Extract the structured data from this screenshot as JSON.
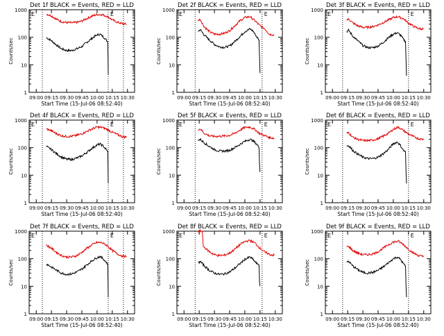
{
  "figure": {
    "xlabel": "Start Time (15-Jul-06 08:52:40)",
    "ylabel": "Counts/sec",
    "y_ticks": [
      1,
      10,
      100,
      1000
    ],
    "y_tick_labels": [
      "1",
      "10",
      "100",
      "1000"
    ],
    "marker": "E",
    "colors": {
      "events": "#000000",
      "lld": "#e00000",
      "axes": "#000000"
    }
  },
  "chart_data": [
    {
      "type": "line",
      "title": "Det 1f BLACK = Events, RED = LLD",
      "xlabel": "Start Time (15-Jul-06 08:52:40)",
      "ylabel": "Counts/sec",
      "x_tick_labels": [
        "09:00",
        "09:15",
        "09:30",
        "09:45",
        "10:00",
        "10:15",
        "10:30"
      ],
      "x_ticks_min": [
        0,
        15,
        30,
        45,
        60,
        75,
        90
      ],
      "xlim_min": [
        -7,
        97
      ],
      "y_scale": "log",
      "ylim": [
        1,
        1000
      ],
      "vlines_min": [
        6,
        71,
        86
      ],
      "marker_x_min": 73,
      "series": [
        {
          "name": "Events",
          "color": "#000000",
          "x": [
            10,
            15,
            20,
            25,
            30,
            35,
            40,
            45,
            50,
            55,
            60,
            63,
            66,
            69,
            70.5,
            70.8,
            71
          ],
          "y": [
            98,
            75,
            52,
            38,
            33,
            33,
            38,
            46,
            66,
            92,
            122,
            128,
            106,
            80,
            68,
            20,
            4.5
          ]
        },
        {
          "name": "LLD",
          "color": "#e00000",
          "x": [
            10,
            15,
            20,
            25,
            30,
            35,
            40,
            45,
            50,
            55,
            60,
            65,
            70,
            75,
            80,
            85,
            89
          ],
          "y": [
            700,
            600,
            450,
            370,
            340,
            335,
            345,
            390,
            480,
            590,
            670,
            660,
            570,
            430,
            350,
            310,
            300
          ]
        }
      ]
    },
    {
      "type": "line",
      "title": "Det 2f BLACK = Events, RED = LLD",
      "xlabel": "Start Time (15-Jul-06 08:52:40)",
      "ylabel": "Counts/sec",
      "x_tick_labels": [
        "09:00",
        "09:15",
        "09:30",
        "09:45",
        "10:00",
        "10:15",
        "10:30"
      ],
      "x_ticks_min": [
        0,
        15,
        30,
        45,
        60,
        75,
        90
      ],
      "xlim_min": [
        -7,
        97
      ],
      "y_scale": "log",
      "ylim": [
        1,
        1000
      ],
      "vlines_min": [
        11,
        77
      ],
      "marker_x_min": 79,
      "series": [
        {
          "name": "Events",
          "color": "#000000",
          "x": [
            14,
            16,
            20,
            25,
            30,
            35,
            40,
            45,
            50,
            55,
            60,
            65,
            68,
            72,
            74,
            74.5,
            75
          ],
          "y": [
            165,
            190,
            120,
            80,
            55,
            45,
            43,
            48,
            70,
            105,
            160,
            200,
            170,
            100,
            80,
            20,
            5
          ]
        },
        {
          "name": "LLD",
          "color": "#e00000",
          "x": [
            14,
            16,
            20,
            25,
            30,
            35,
            40,
            45,
            50,
            55,
            60,
            65,
            70,
            75,
            80,
            84,
            89
          ],
          "y": [
            420,
            440,
            240,
            160,
            130,
            130,
            140,
            175,
            260,
            390,
            520,
            560,
            400,
            260,
            200,
            130,
            120
          ]
        }
      ]
    },
    {
      "type": "line",
      "title": "Det 3f BLACK = Events, RED = LLD",
      "xlabel": "Start Time (15-Jul-06 08:52:40)",
      "ylabel": "Counts/sec",
      "x_tick_labels": [
        "09:00",
        "09:15",
        "09:30",
        "09:45",
        "10:00",
        "10:15",
        "10:30"
      ],
      "x_ticks_min": [
        0,
        15,
        30,
        45,
        60,
        75,
        90
      ],
      "xlim_min": [
        -7,
        97
      ],
      "y_scale": "log",
      "ylim": [
        1,
        1000
      ],
      "vlines_min": [
        10,
        75
      ],
      "marker_x_min": 77,
      "series": [
        {
          "name": "Events",
          "color": "#000000",
          "x": [
            14,
            16,
            20,
            25,
            30,
            35,
            40,
            45,
            50,
            55,
            60,
            64,
            67,
            70,
            72,
            72.5,
            73
          ],
          "y": [
            160,
            180,
            110,
            75,
            50,
            42,
            42,
            48,
            65,
            95,
            130,
            145,
            120,
            85,
            70,
            18,
            4
          ]
        },
        {
          "name": "LLD",
          "color": "#e00000",
          "x": [
            14,
            16,
            20,
            25,
            30,
            35,
            40,
            45,
            50,
            55,
            60,
            65,
            70,
            75,
            80,
            85,
            90
          ],
          "y": [
            420,
            460,
            330,
            260,
            230,
            230,
            245,
            280,
            340,
            420,
            520,
            560,
            470,
            330,
            250,
            205,
            200
          ]
        }
      ]
    },
    {
      "type": "line",
      "title": "Det 4f BLACK = Events, RED = LLD",
      "xlabel": "Start Time (15-Jul-06 08:52:40)",
      "ylabel": "Counts/sec",
      "x_tick_labels": [
        "09:00",
        "09:15",
        "09:30",
        "09:45",
        "10:00",
        "10:15",
        "10:30"
      ],
      "x_ticks_min": [
        0,
        15,
        30,
        45,
        60,
        75,
        90
      ],
      "xlim_min": [
        -7,
        97
      ],
      "y_scale": "log",
      "ylim": [
        1,
        1000
      ],
      "vlines_min": [
        6,
        71,
        86
      ],
      "marker_x_min": 73,
      "series": [
        {
          "name": "Events",
          "color": "#000000",
          "x": [
            10,
            15,
            20,
            25,
            30,
            35,
            40,
            45,
            50,
            55,
            60,
            63,
            66,
            69,
            70.5,
            70.8,
            71
          ],
          "y": [
            110,
            85,
            60,
            45,
            38,
            37,
            42,
            50,
            68,
            95,
            125,
            135,
            115,
            85,
            75,
            20,
            5
          ]
        },
        {
          "name": "LLD",
          "color": "#e00000",
          "x": [
            10,
            15,
            20,
            25,
            30,
            35,
            40,
            45,
            50,
            55,
            60,
            65,
            70,
            75,
            80,
            85,
            89
          ],
          "y": [
            480,
            410,
            320,
            270,
            255,
            260,
            280,
            320,
            390,
            480,
            560,
            540,
            460,
            360,
            300,
            250,
            240
          ]
        }
      ]
    },
    {
      "type": "line",
      "title": "Det 5f BLACK = Events, RED = LLD",
      "xlabel": "Start Time (15-Jul-06 08:52:40)",
      "ylabel": "Counts/sec",
      "x_tick_labels": [
        "09:00",
        "09:15",
        "09:30",
        "09:45",
        "10:00",
        "10:15",
        "10:30"
      ],
      "x_ticks_min": [
        0,
        15,
        30,
        45,
        60,
        75,
        90
      ],
      "xlim_min": [
        -7,
        97
      ],
      "y_scale": "log",
      "ylim": [
        1,
        1000
      ],
      "vlines_min": [
        11,
        77
      ],
      "marker_x_min": 79,
      "series": [
        {
          "name": "Events",
          "color": "#000000",
          "x": [
            14,
            16,
            20,
            25,
            30,
            35,
            40,
            45,
            50,
            55,
            60,
            65,
            68,
            72,
            74,
            74.5,
            75
          ],
          "y": [
            190,
            200,
            150,
            110,
            85,
            75,
            75,
            80,
            100,
            130,
            170,
            200,
            180,
            130,
            100,
            25,
            13
          ]
        },
        {
          "name": "LLD",
          "color": "#e00000",
          "x": [
            14,
            16,
            20,
            25,
            30,
            35,
            40,
            45,
            50,
            55,
            60,
            65,
            70,
            75,
            80,
            85,
            89
          ],
          "y": [
            450,
            480,
            330,
            270,
            255,
            260,
            265,
            280,
            330,
            430,
            540,
            560,
            450,
            320,
            270,
            230,
            220
          ]
        }
      ]
    },
    {
      "type": "line",
      "title": "Det 6f BLACK = Events, RED = LLD",
      "xlabel": "Start Time (15-Jul-06 08:52:40)",
      "ylabel": "Counts/sec",
      "x_tick_labels": [
        "09:00",
        "09:15",
        "09:30",
        "09:45",
        "10:00",
        "10:15",
        "10:30"
      ],
      "x_ticks_min": [
        0,
        15,
        30,
        45,
        60,
        75,
        90
      ],
      "xlim_min": [
        -7,
        97
      ],
      "y_scale": "log",
      "ylim": [
        1,
        1000
      ],
      "vlines_min": [
        10,
        75
      ],
      "marker_x_min": 77,
      "series": [
        {
          "name": "Events",
          "color": "#000000",
          "x": [
            14,
            16,
            20,
            25,
            30,
            35,
            40,
            45,
            50,
            55,
            60,
            64,
            67,
            70,
            72,
            72.5,
            73
          ],
          "y": [
            115,
            120,
            80,
            58,
            45,
            40,
            40,
            45,
            60,
            85,
            140,
            160,
            120,
            80,
            70,
            15,
            5
          ]
        },
        {
          "name": "LLD",
          "color": "#e00000",
          "x": [
            14,
            16,
            20,
            25,
            30,
            35,
            40,
            45,
            50,
            55,
            60,
            65,
            70,
            75,
            80,
            85,
            90
          ],
          "y": [
            330,
            350,
            240,
            200,
            180,
            180,
            190,
            210,
            260,
            330,
            460,
            560,
            420,
            310,
            250,
            210,
            200
          ]
        }
      ]
    },
    {
      "type": "line",
      "title": "Det 7f BLACK = Events, RED = LLD",
      "xlabel": "Start Time (15-Jul-06 08:52:40)",
      "ylabel": "Counts/sec",
      "x_tick_labels": [
        "09:00",
        "09:15",
        "09:30",
        "09:45",
        "10:00",
        "10:15",
        "10:30"
      ],
      "x_ticks_min": [
        0,
        15,
        30,
        45,
        60,
        75,
        90
      ],
      "xlim_min": [
        -7,
        97
      ],
      "y_scale": "log",
      "ylim": [
        1,
        1000
      ],
      "vlines_min": [
        6,
        71,
        86
      ],
      "marker_x_min": 73,
      "series": [
        {
          "name": "Events",
          "color": "#000000",
          "x": [
            10,
            15,
            20,
            25,
            30,
            35,
            40,
            45,
            50,
            55,
            60,
            63,
            66,
            69,
            70.5,
            70.8,
            71
          ],
          "y": [
            65,
            50,
            38,
            30,
            27,
            28,
            33,
            42,
            60,
            85,
            110,
            120,
            100,
            75,
            65,
            15,
            4
          ]
        },
        {
          "name": "LLD",
          "color": "#e00000",
          "x": [
            10,
            15,
            20,
            25,
            30,
            35,
            40,
            45,
            50,
            55,
            60,
            65,
            70,
            75,
            80,
            85,
            89
          ],
          "y": [
            310,
            240,
            170,
            130,
            115,
            115,
            130,
            170,
            240,
            320,
            390,
            380,
            300,
            200,
            150,
            125,
            120
          ]
        }
      ]
    },
    {
      "type": "line",
      "title": "Det 8f BLACK = Events, RED = LLD",
      "xlabel": "Start Time (15-Jul-06 08:52:40)",
      "ylabel": "Counts/sec",
      "x_tick_labels": [
        "09:00",
        "09:15",
        "09:30",
        "09:45",
        "10:00",
        "10:15",
        "10:30"
      ],
      "x_ticks_min": [
        0,
        15,
        30,
        45,
        60,
        75,
        90
      ],
      "xlim_min": [
        -7,
        97
      ],
      "y_scale": "log",
      "ylim": [
        1,
        1000
      ],
      "vlines_min": [
        11,
        77
      ],
      "marker_x_min": 79,
      "series": [
        {
          "name": "Events",
          "color": "#000000",
          "x": [
            14,
            16,
            20,
            25,
            30,
            35,
            40,
            45,
            50,
            55,
            60,
            65,
            68,
            72,
            74,
            74.5,
            75
          ],
          "y": [
            70,
            80,
            55,
            38,
            30,
            27,
            28,
            33,
            45,
            65,
            95,
            115,
            95,
            65,
            60,
            15,
            10
          ]
        },
        {
          "name": "LLD",
          "color": "#e00000",
          "x": [
            14,
            16,
            18,
            19,
            20,
            25,
            30,
            35,
            40,
            45,
            50,
            55,
            60,
            65,
            70,
            75,
            80,
            85,
            89
          ],
          "y": [
            1000,
            1000,
            1000,
            280,
            260,
            180,
            140,
            130,
            135,
            160,
            220,
            320,
            420,
            460,
            370,
            240,
            170,
            140,
            135
          ]
        }
      ]
    },
    {
      "type": "line",
      "title": "Det 9f BLACK = Events, RED = LLD",
      "xlabel": "Start Time (15-Jul-06 08:52:40)",
      "ylabel": "Counts/sec",
      "x_tick_labels": [
        "09:00",
        "09:15",
        "09:30",
        "09:45",
        "10:00",
        "10:15",
        "10:30"
      ],
      "x_ticks_min": [
        0,
        15,
        30,
        45,
        60,
        75,
        90
      ],
      "xlim_min": [
        -7,
        97
      ],
      "y_scale": "log",
      "ylim": [
        1,
        1000
      ],
      "vlines_min": [
        10,
        75
      ],
      "marker_x_min": 77,
      "series": [
        {
          "name": "Events",
          "color": "#000000",
          "x": [
            14,
            16,
            20,
            25,
            30,
            35,
            40,
            45,
            50,
            55,
            60,
            64,
            67,
            70,
            72,
            72.5,
            73
          ],
          "y": [
            75,
            80,
            55,
            40,
            32,
            30,
            32,
            38,
            50,
            70,
            100,
            115,
            95,
            65,
            55,
            12,
            4
          ]
        },
        {
          "name": "LLD",
          "color": "#e00000",
          "x": [
            14,
            16,
            20,
            25,
            30,
            35,
            40,
            45,
            50,
            55,
            60,
            65,
            70,
            75,
            80,
            85,
            90
          ],
          "y": [
            270,
            280,
            200,
            160,
            140,
            140,
            150,
            180,
            240,
            320,
            400,
            430,
            330,
            220,
            160,
            130,
            120
          ]
        }
      ]
    }
  ]
}
